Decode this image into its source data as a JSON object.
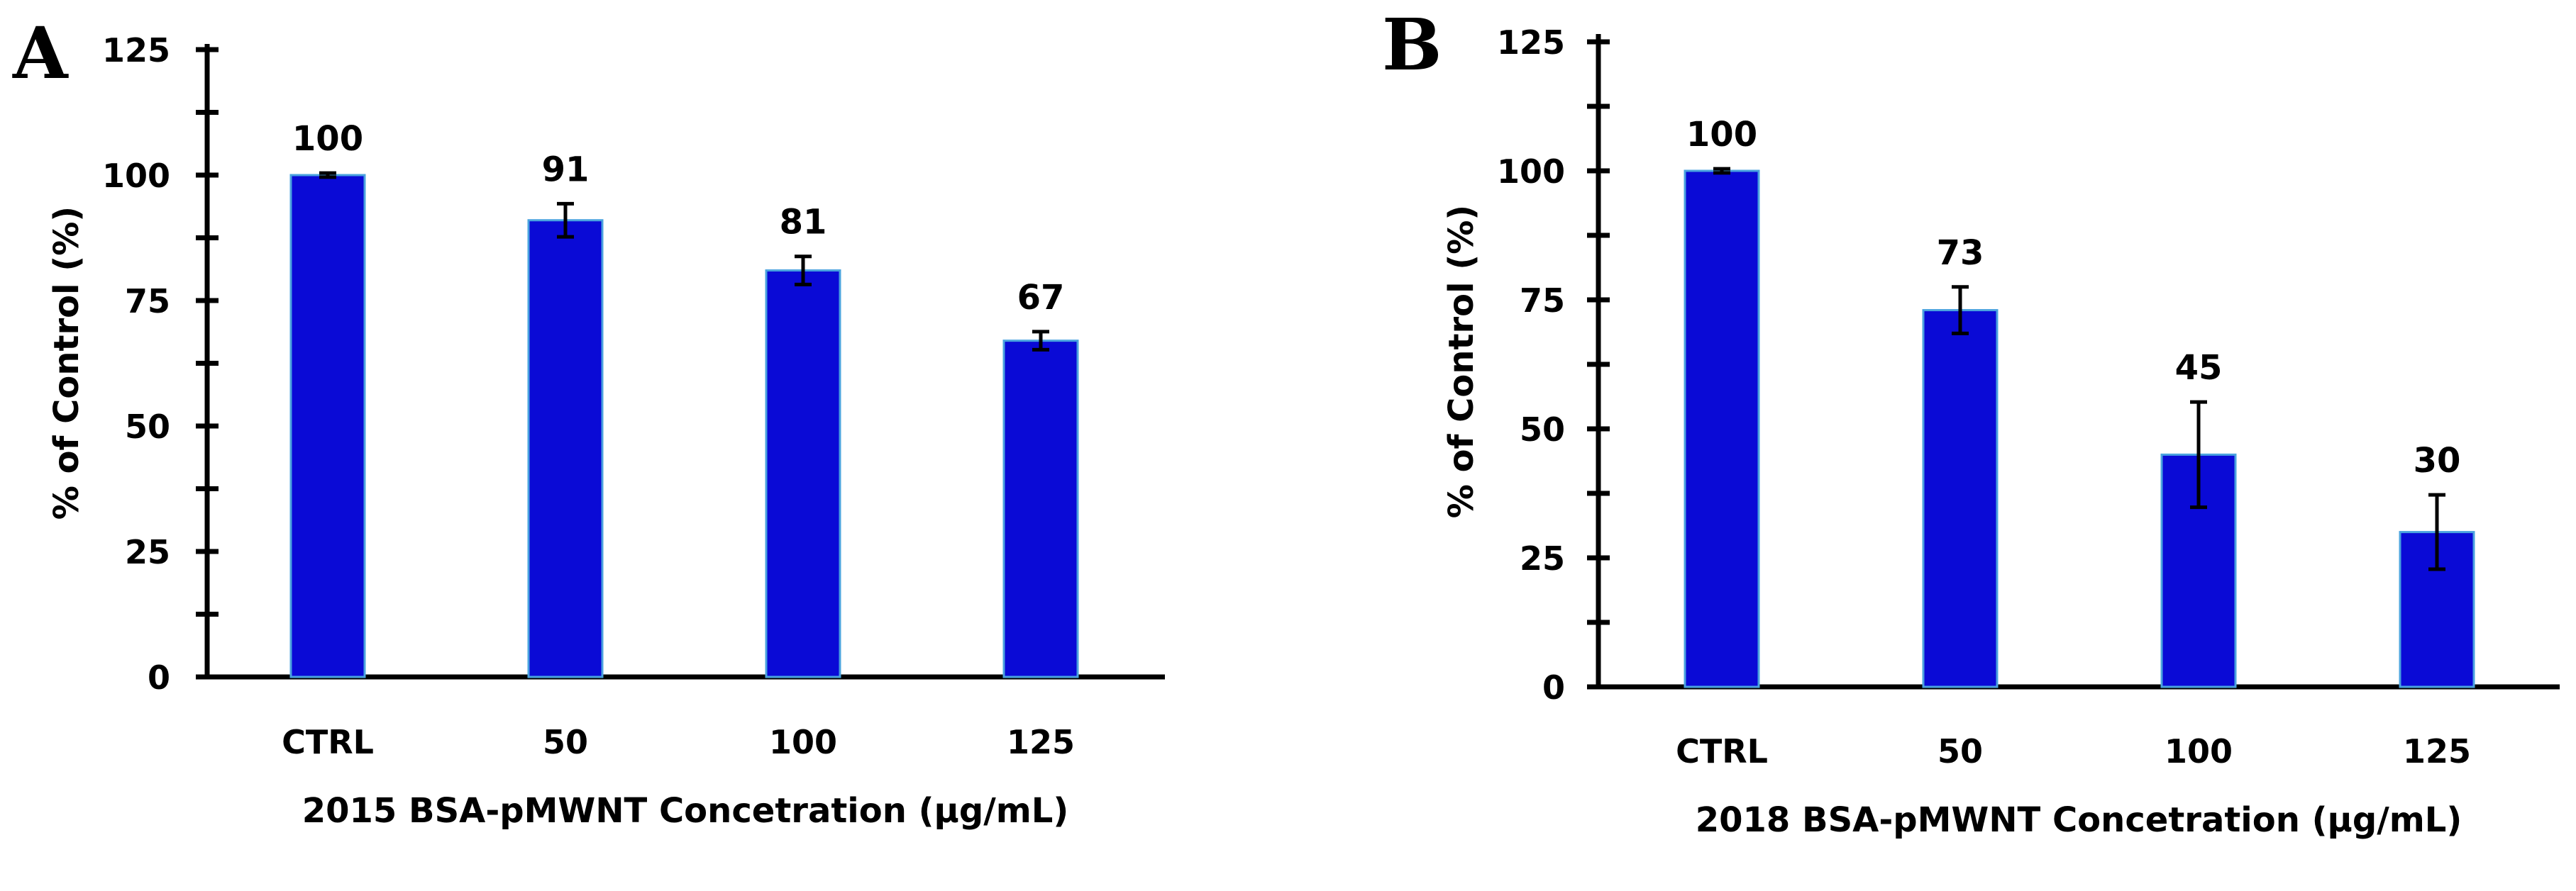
{
  "chart_data": [
    {
      "type": "bar",
      "panel_label": "A",
      "title": "",
      "categories": [
        "CTRL",
        "50",
        "100",
        "125"
      ],
      "values": [
        100,
        91,
        81,
        67
      ],
      "errors": [
        0.4,
        3.3,
        2.8,
        1.8
      ],
      "value_labels": [
        "100",
        "91",
        "81",
        "67"
      ],
      "xlabel": "2015 BSA-pMWNT Concetration (μg/mL)",
      "ylabel": "% of Control (%)",
      "ylim": [
        0,
        125
      ],
      "yticks": [
        "0",
        "25",
        "50",
        "75",
        "100",
        "125"
      ],
      "grid": false,
      "bar_color": "#0a0ad6",
      "bar_edge_color": "#4aa3df"
    },
    {
      "type": "bar",
      "panel_label": "B",
      "title": "",
      "categories": [
        "CTRL",
        "50",
        "100",
        "125"
      ],
      "values": [
        100,
        73,
        45,
        30
      ],
      "errors": [
        0.4,
        4.5,
        10.2,
        7.2
      ],
      "value_labels": [
        "100",
        "73",
        "45",
        "30"
      ],
      "xlabel": "2018 BSA-pMWNT Concetration (μg/mL)",
      "ylabel": "% of Control (%)",
      "ylim": [
        0,
        125
      ],
      "yticks": [
        "0",
        "25",
        "50",
        "75",
        "100",
        "125"
      ],
      "grid": false,
      "bar_color": "#0a0ad6",
      "bar_edge_color": "#4aa3df"
    }
  ]
}
